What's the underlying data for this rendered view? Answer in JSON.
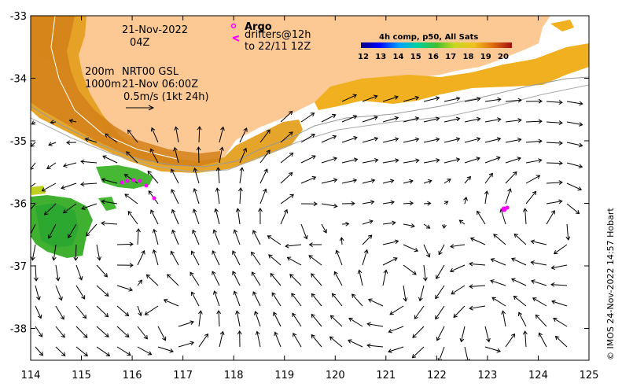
{
  "date_line": "21-Nov-2022",
  "time_line": "04Z",
  "argo_label": "Argo",
  "drifters_line1": "drifters@12h",
  "drifters_line2": "to 22/11 12Z",
  "depth1_label": "200m",
  "depth2_label": "1000m",
  "product_label": "NRT00 GSL",
  "product_time": "21-Nov 06:00Z",
  "scale_label": "0.5m/s (1kt 24h)",
  "colorbar_title": "4h comp, p50, All Sats",
  "colorbar_ticks": [
    "12",
    "13",
    "14",
    "15",
    "16",
    "17",
    "18",
    "19",
    "20"
  ],
  "x_ticks": [
    "114",
    "115",
    "116",
    "117",
    "118",
    "119",
    "120",
    "121",
    "122",
    "123",
    "124",
    "125"
  ],
  "y_ticks": [
    "-33",
    "-34",
    "-35",
    "-36",
    "-37",
    "-38"
  ],
  "credit": "© IMOS 24-Nov-2022 14:57 Hobart",
  "colors": {
    "land": "#fcc995",
    "ocean": "#ffffff",
    "argo": "#ff00ff",
    "warm": "#e09018",
    "green": "#3cb030"
  }
}
